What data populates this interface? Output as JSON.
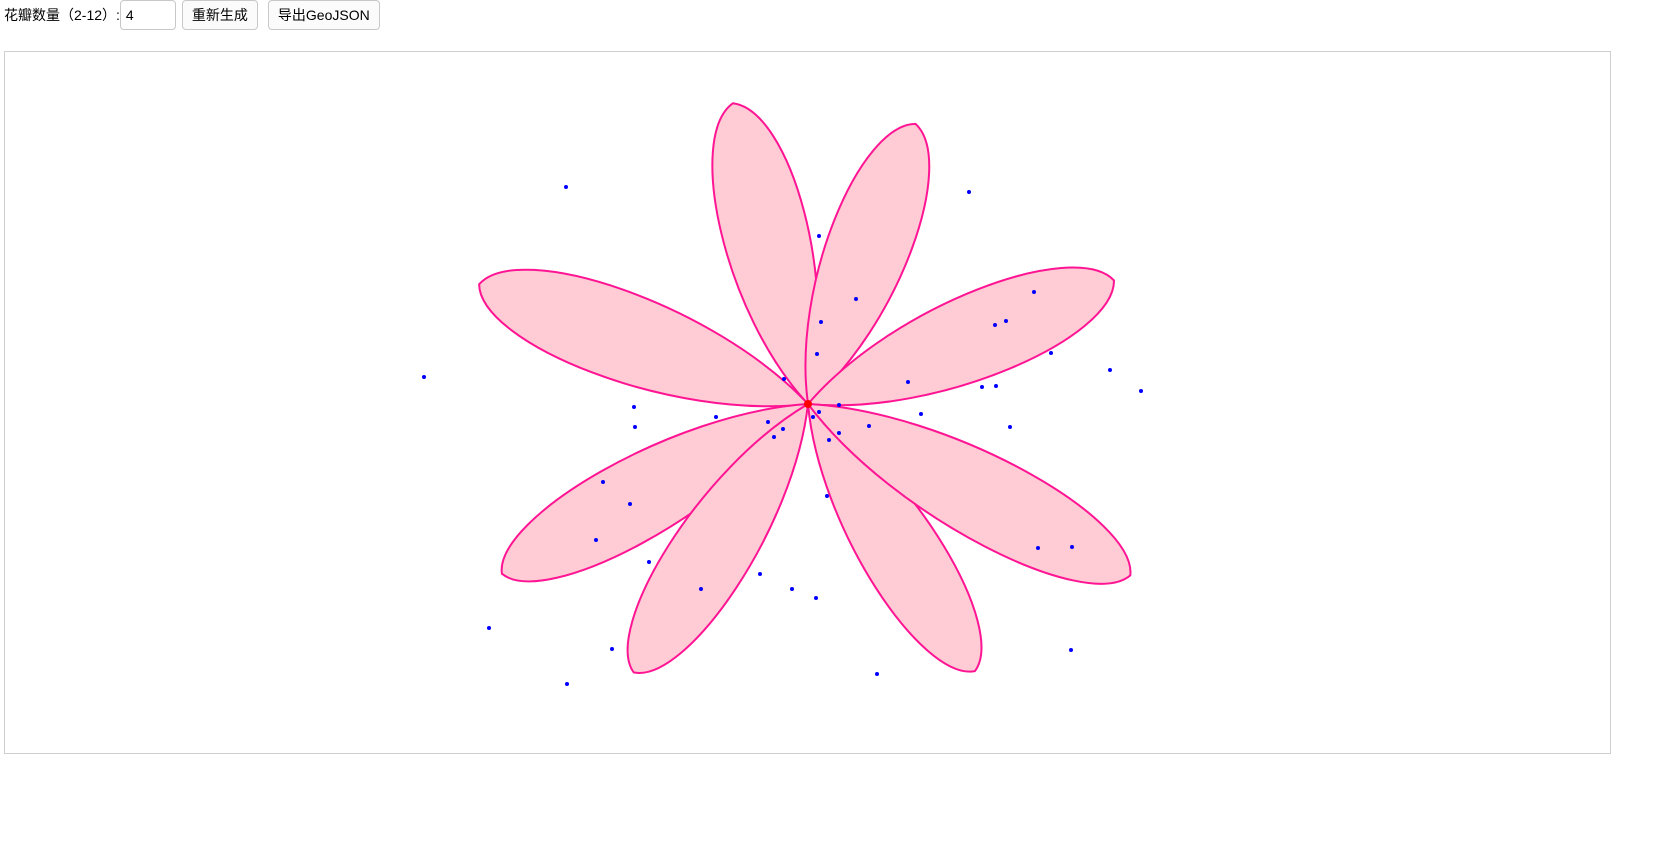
{
  "toolbar": {
    "petal_label": "花瓣数量（2-12）:",
    "petal_value": "4",
    "regenerate_label": "重新生成",
    "export_label": "导出GeoJSON"
  },
  "colors": {
    "petal_fill": "#ffccd5",
    "petal_stroke": "#ff1493",
    "center": "#ff0000",
    "point": "#0000ff",
    "canvas_border": "#cfcfcf"
  }
}
